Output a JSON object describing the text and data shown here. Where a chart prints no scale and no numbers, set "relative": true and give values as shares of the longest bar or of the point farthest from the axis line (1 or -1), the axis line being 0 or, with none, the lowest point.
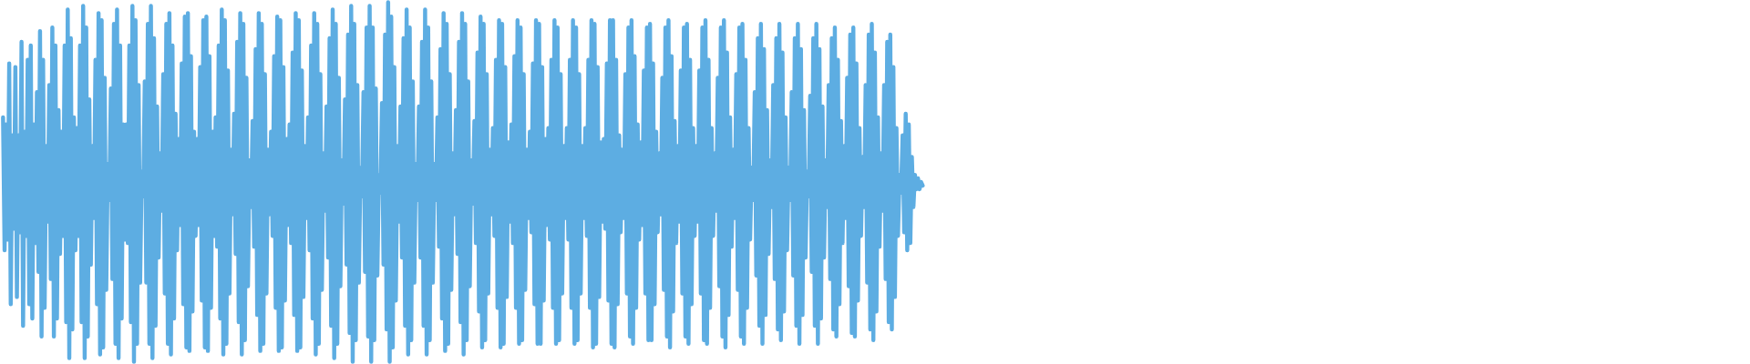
{
  "chart_data": {
    "type": "line",
    "relative": true,
    "color": "#5dade2",
    "categories": [
      null,
      null,
      null,
      null,
      null,
      null,
      null,
      null,
      null,
      null,
      null,
      null,
      null,
      null,
      null,
      null,
      null,
      null,
      null,
      null,
      null,
      null,
      null,
      null,
      null,
      null,
      null,
      null,
      null,
      null,
      null,
      null,
      null,
      null,
      null,
      null,
      null,
      null,
      null,
      null,
      null,
      null,
      null,
      null,
      null,
      null,
      null,
      null,
      null,
      null,
      null,
      null,
      null,
      null,
      null,
      null,
      null,
      null,
      null,
      null,
      null,
      null,
      null,
      null,
      null,
      null,
      null,
      null,
      null,
      null,
      null,
      null,
      null,
      null,
      null,
      null,
      null,
      null,
      null,
      null,
      null,
      null,
      null,
      null,
      null,
      null,
      null,
      null,
      null,
      null,
      null,
      null,
      null,
      null,
      null,
      null,
      null,
      null,
      null,
      null,
      null,
      null,
      null,
      null,
      null,
      null,
      null,
      null,
      null,
      null,
      null,
      null,
      null,
      null,
      null,
      null,
      null,
      null,
      null,
      null,
      null,
      null,
      null,
      null,
      null,
      null,
      null,
      null,
      null,
      null,
      null,
      null,
      null,
      null,
      null,
      null,
      null,
      null,
      null,
      null,
      null,
      null,
      null,
      null,
      null,
      null,
      null,
      null,
      null,
      null,
      null,
      null,
      null,
      null,
      null,
      null,
      null,
      null,
      null,
      null,
      null,
      null,
      null,
      null,
      null,
      null,
      null,
      null,
      null,
      null,
      null,
      null,
      null,
      null,
      null,
      null,
      null,
      null,
      null,
      null,
      null,
      null,
      null,
      null,
      null,
      null,
      null,
      null,
      null,
      null,
      null,
      null,
      null,
      null,
      null,
      null,
      null,
      null,
      null,
      null,
      null,
      null,
      null,
      null,
      null,
      null,
      null,
      null,
      null,
      null,
      null,
      null,
      null,
      null,
      null,
      null,
      null,
      null,
      null,
      null,
      null,
      null,
      null,
      null,
      null,
      null,
      null,
      null,
      null,
      null,
      null,
      null,
      null,
      null,
      null,
      null,
      null,
      null,
      null,
      null,
      null,
      null,
      null,
      null,
      null,
      null,
      null,
      null,
      null,
      null,
      null,
      null,
      null,
      null,
      null,
      null,
      null,
      null,
      null,
      null,
      null,
      null,
      null,
      null,
      null,
      null,
      null,
      null,
      null,
      null,
      null,
      null,
      null,
      null,
      null,
      null,
      null,
      null,
      null,
      null,
      null,
      null,
      null,
      null,
      null,
      null,
      null,
      null,
      null,
      null,
      null,
      null,
      null,
      null,
      null,
      null,
      null,
      null,
      null,
      null,
      null,
      null,
      null,
      null,
      null,
      null,
      null,
      null,
      null,
      null,
      null,
      null,
      null,
      null,
      null,
      null,
      null,
      null,
      null,
      null,
      null,
      null,
      null,
      null,
      null,
      null,
      null,
      null,
      null,
      null,
      null,
      null,
      null,
      null,
      null,
      null,
      null,
      null,
      null,
      null,
      null,
      null,
      null,
      null,
      null,
      null,
      null,
      null,
      null,
      null,
      null,
      null,
      null,
      null,
      null,
      null,
      null,
      null,
      null,
      null,
      null,
      null,
      null,
      null,
      null,
      null,
      null,
      null,
      null,
      null,
      null,
      null,
      null,
      null,
      null,
      null,
      null,
      null,
      null,
      null,
      null,
      null,
      null,
      null,
      null,
      null,
      null,
      null,
      null,
      null,
      null,
      null,
      null,
      null,
      null,
      null,
      null,
      null,
      null,
      null,
      null,
      null,
      null,
      null,
      null,
      null,
      null,
      null,
      null,
      null,
      null,
      null,
      null,
      null,
      null,
      null,
      null,
      null,
      null,
      null,
      null,
      null,
      null,
      null,
      null,
      null,
      null,
      null,
      null,
      null,
      null,
      null,
      null,
      null,
      null,
      null,
      null,
      null,
      null,
      null,
      null,
      null,
      null,
      null,
      null,
      null,
      null,
      null,
      null,
      null,
      null,
      null,
      null,
      null,
      null,
      null,
      null,
      null,
      null,
      null,
      null,
      null,
      null,
      null,
      null,
      null,
      null,
      null,
      null,
      null,
      null,
      null,
      null,
      null,
      null,
      null,
      null,
      null,
      null,
      null,
      null,
      null,
      null,
      null,
      null,
      null,
      null,
      null,
      null,
      null,
      null,
      null,
      null,
      null,
      null,
      null,
      null,
      null,
      null,
      null,
      null,
      null,
      null,
      null,
      null,
      null,
      null,
      null,
      null,
      null,
      null,
      null,
      null,
      null,
      null,
      null,
      null,
      null,
      null,
      null,
      null,
      null,
      null,
      null,
      null,
      null,
      null,
      null,
      null,
      null,
      null,
      null,
      null,
      null,
      null,
      null,
      null,
      null,
      null,
      null,
      null,
      null,
      null,
      null,
      null,
      null,
      null,
      null,
      null,
      null,
      null,
      null,
      null,
      null,
      null,
      null,
      null,
      null,
      null,
      null,
      null,
      null,
      null,
      null,
      null,
      null,
      null,
      null,
      null,
      null,
      null,
      null,
      null,
      null,
      null,
      null,
      null,
      null,
      null,
      null,
      null,
      null,
      null,
      null,
      null,
      null,
      null,
      null,
      null,
      null,
      null,
      null,
      null,
      null,
      null,
      null,
      null,
      null
    ],
    "values": [
      0.68,
      0.31,
      0.66,
      0.34,
      0.83,
      0.16,
      0.63,
      0.37,
      0.82,
      0.18,
      0.63,
      0.36,
      0.89,
      0.1,
      0.64,
      0.35,
      0.84,
      0.16,
      0.88,
      0.12,
      0.66,
      0.33,
      0.75,
      0.25,
      0.92,
      0.07,
      0.84,
      0.15,
      0.6,
      0.39,
      0.77,
      0.23,
      0.93,
      0.07,
      0.88,
      0.12,
      0.7,
      0.3,
      0.64,
      0.35,
      0.88,
      0.11,
      0.98,
      0.01,
      0.9,
      0.09,
      0.68,
      0.31,
      0.65,
      0.35,
      0.88,
      0.11,
      0.99,
      0.01,
      0.93,
      0.07,
      0.73,
      0.27,
      0.6,
      0.4,
      0.84,
      0.16,
      0.97,
      0.02,
      0.95,
      0.04,
      0.79,
      0.2,
      0.55,
      0.45,
      0.76,
      0.23,
      0.94,
      0.05,
      0.98,
      0.01,
      0.88,
      0.12,
      0.66,
      0.34,
      0.66,
      0.33,
      0.88,
      0.11,
      0.99,
      0.0,
      0.95,
      0.05,
      0.77,
      0.22,
      0.53,
      0.46,
      0.78,
      0.22,
      0.94,
      0.05,
      0.99,
      0.01,
      0.9,
      0.1,
      0.71,
      0.29,
      0.58,
      0.42,
      0.8,
      0.19,
      0.94,
      0.05,
      0.97,
      0.02,
      0.88,
      0.12,
      0.69,
      0.31,
      0.62,
      0.38,
      0.83,
      0.16,
      0.96,
      0.04,
      0.97,
      0.03,
      0.85,
      0.14,
      0.64,
      0.35,
      0.62,
      0.38,
      0.82,
      0.17,
      0.95,
      0.04,
      0.96,
      0.03,
      0.85,
      0.15,
      0.64,
      0.35,
      0.68,
      0.32,
      0.88,
      0.12,
      0.98,
      0.02,
      0.95,
      0.05,
      0.81,
      0.19,
      0.59,
      0.41,
      0.69,
      0.3,
      0.89,
      0.11,
      0.97,
      0.02,
      0.94,
      0.06,
      0.79,
      0.21,
      0.56,
      0.43,
      0.67,
      0.32,
      0.87,
      0.13,
      0.97,
      0.03,
      0.94,
      0.05,
      0.8,
      0.19,
      0.59,
      0.41,
      0.64,
      0.35,
      0.85,
      0.15,
      0.96,
      0.03,
      0.95,
      0.04,
      0.82,
      0.17,
      0.62,
      0.38,
      0.66,
      0.33,
      0.86,
      0.13,
      0.97,
      0.03,
      0.95,
      0.04,
      0.81,
      0.18,
      0.6,
      0.4,
      0.68,
      0.31,
      0.88,
      0.12,
      0.97,
      0.02,
      0.94,
      0.05,
      0.8,
      0.2,
      0.58,
      0.42,
      0.71,
      0.29,
      0.9,
      0.1,
      0.98,
      0.01,
      0.94,
      0.05,
      0.79,
      0.21,
      0.56,
      0.44,
      0.73,
      0.27,
      0.91,
      0.08,
      0.99,
      0.0,
      0.94,
      0.06,
      0.77,
      0.22,
      0.54,
      0.46,
      0.75,
      0.25,
      0.93,
      0.07,
      0.99,
      0.0,
      0.93,
      0.06,
      0.76,
      0.24,
      0.52,
      0.47,
      0.72,
      0.27,
      0.91,
      0.09,
      1.0,
      0.0,
      0.96,
      0.04,
      0.82,
      0.17,
      0.6,
      0.39,
      0.71,
      0.29,
      0.9,
      0.1,
      0.98,
      0.02,
      0.93,
      0.06,
      0.78,
      0.22,
      0.55,
      0.45,
      0.71,
      0.29,
      0.89,
      0.1,
      0.98,
      0.02,
      0.93,
      0.06,
      0.78,
      0.22,
      0.55,
      0.45,
      0.68,
      0.32,
      0.87,
      0.12,
      0.97,
      0.03,
      0.94,
      0.05,
      0.8,
      0.2,
      0.58,
      0.41,
      0.7,
      0.3,
      0.89,
      0.11,
      0.97,
      0.02,
      0.94,
      0.06,
      0.78,
      0.21,
      0.56,
      0.44,
      0.67,
      0.33,
      0.86,
      0.14,
      0.96,
      0.04,
      0.94,
      0.06,
      0.8,
      0.19,
      0.59,
      0.41,
      0.65,
      0.35,
      0.84,
      0.15,
      0.95,
      0.04,
      0.94,
      0.05,
      0.82,
      0.18,
      0.61,
      0.39,
      0.66,
      0.33,
      0.85,
      0.15,
      0.95,
      0.05,
      0.93,
      0.06,
      0.8,
      0.2,
      0.59,
      0.4,
      0.64,
      0.36,
      0.83,
      0.16,
      0.95,
      0.05,
      0.94,
      0.05,
      0.82,
      0.17,
      0.62,
      0.38,
      0.65,
      0.34,
      0.84,
      0.15,
      0.95,
      0.05,
      0.93,
      0.06,
      0.8,
      0.19,
      0.6,
      0.4,
      0.65,
      0.34,
      0.84,
      0.15,
      0.95,
      0.05,
      0.93,
      0.06,
      0.8,
      0.19,
      0.6,
      0.4,
      0.65,
      0.35,
      0.84,
      0.15,
      0.95,
      0.04,
      0.94,
      0.05,
      0.82,
      0.18,
      0.61,
      0.39,
      0.62,
      0.37,
      0.83,
      0.17,
      0.95,
      0.05,
      0.95,
      0.04,
      0.84,
      0.16,
      0.63,
      0.36,
      0.59,
      0.4,
      0.8,
      0.19,
      0.93,
      0.07,
      0.95,
      0.05,
      0.85,
      0.15,
      0.66,
      0.34,
      0.61,
      0.38,
      0.81,
      0.19,
      0.93,
      0.06,
      0.94,
      0.06,
      0.83,
      0.16,
      0.64,
      0.36,
      0.58,
      0.41,
      0.79,
      0.2,
      0.93,
      0.07,
      0.95,
      0.04,
      0.85,
      0.14,
      0.67,
      0.33,
      0.6,
      0.39,
      0.81,
      0.19,
      0.93,
      0.07,
      0.94,
      0.05,
      0.84,
      0.16,
      0.65,
      0.35,
      0.6,
      0.39,
      0.81,
      0.19,
      0.93,
      0.06,
      0.95,
      0.05,
      0.84,
      0.15,
      0.65,
      0.35,
      0.58,
      0.42,
      0.79,
      0.21,
      0.93,
      0.07,
      0.95,
      0.04,
      0.86,
      0.13,
      0.68,
      0.32,
      0.59,
      0.4,
      0.8,
      0.2,
      0.93,
      0.07,
      0.94,
      0.05,
      0.84,
      0.15,
      0.65,
      0.34,
      0.54,
      0.45,
      0.75,
      0.24,
      0.9,
      0.1,
      0.94,
      0.05,
      0.87,
      0.13,
      0.7,
      0.3,
      0.56,
      0.43,
      0.77,
      0.23,
      0.9,
      0.09,
      0.94,
      0.06,
      0.86,
      0.14,
      0.68,
      0.31,
      0.54,
      0.45,
      0.75,
      0.24,
      0.9,
      0.1,
      0.94,
      0.05,
      0.87,
      0.13,
      0.7,
      0.29,
      0.53,
      0.46,
      0.74,
      0.25,
      0.9,
      0.1,
      0.94,
      0.05,
      0.87,
      0.12,
      0.71,
      0.29,
      0.56,
      0.43,
      0.77,
      0.23,
      0.9,
      0.09,
      0.93,
      0.07,
      0.84,
      0.16,
      0.67,
      0.33,
      0.6,
      0.4,
      0.79,
      0.21,
      0.91,
      0.08,
      0.93,
      0.07,
      0.83,
      0.17,
      0.65,
      0.35,
      0.57,
      0.43,
      0.77,
      0.22,
      0.91,
      0.09,
      0.94,
      0.06,
      0.86,
      0.14,
      0.68,
      0.32,
      0.58,
      0.42,
      0.77,
      0.23,
      0.89,
      0.11,
      0.91,
      0.09,
      0.82,
      0.18,
      0.65,
      0.35,
      0.52,
      0.47,
      0.63,
      0.36,
      0.69,
      0.31,
      0.66,
      0.33,
      0.57,
      0.43,
      0.52,
      0.48,
      0.51,
      0.48,
      0.5,
      0.49
    ]
  }
}
